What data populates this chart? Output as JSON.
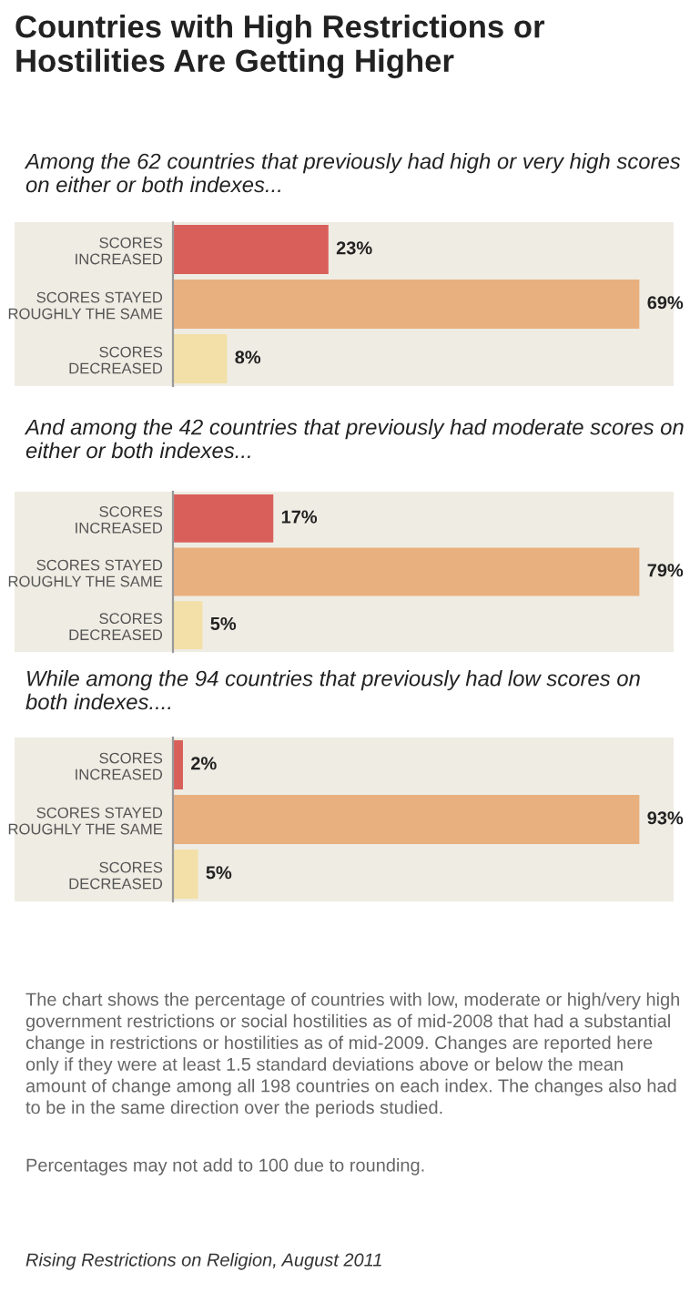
{
  "chart_data": [
    {
      "type": "bar",
      "orientation": "horizontal",
      "title": "Countries with High Restrictions or Hostilities Are Getting Higher",
      "subtitle": "Among the 62 countries that previously had high or very high scores on either or both indexes...",
      "categories": [
        "SCORES\nINCREASED",
        "SCORES STAYED\nROUGHLY THE SAME",
        "SCORES\nDECREASED"
      ],
      "values": [
        23,
        69,
        8
      ],
      "colors": [
        "#d9605a",
        "#e8b07f",
        "#f2e0a8"
      ],
      "value_labels": [
        "23%",
        "69%",
        "8%"
      ],
      "tick_labels": "y",
      "grid": false,
      "legend": false
    },
    {
      "type": "bar",
      "orientation": "horizontal",
      "subtitle": "And among the 42 countries that previously had moderate scores on either or both indexes...",
      "categories": [
        "SCORES\nINCREASED",
        "SCORES STAYED\nROUGHLY THE SAME",
        "SCORES\nDECREASED"
      ],
      "values": [
        17,
        79,
        5
      ],
      "colors": [
        "#d9605a",
        "#e8b07f",
        "#f2e0a8"
      ],
      "value_labels": [
        "17%",
        "79%",
        "5%"
      ],
      "tick_labels": "y",
      "grid": false,
      "legend": false
    },
    {
      "type": "bar",
      "orientation": "horizontal",
      "subtitle": "While among the 94 countries that previously had low scores on both indexes....",
      "categories": [
        "SCORES\nINCREASED",
        "SCORES STAYED\nROUGHLY THE SAME",
        "SCORES\nDECREASED"
      ],
      "values": [
        2,
        93,
        5
      ],
      "colors": [
        "#d9605a",
        "#e8b07f",
        "#f2e0a8"
      ],
      "value_labels": [
        "2%",
        "93%",
        "5%"
      ],
      "tick_labels": "y",
      "grid": false,
      "legend": false,
      "annotations": [
        "The chart shows the percentage of countries with low, moderate or high/very high government restrictions or social hostilities as of mid-2008 that had a substantial change in restrictions or hostilities as of mid-2009. Changes are reported here only if they were at least 1.5 standard deviations above or below the mean amount of change among all 198 countries on each index. The changes also had to be in the same direction over the periods studied.",
        "Percentages may not add to 100 due to rounding.",
        "Rising Restrictions on Religion, August 2011"
      ]
    }
  ]
}
